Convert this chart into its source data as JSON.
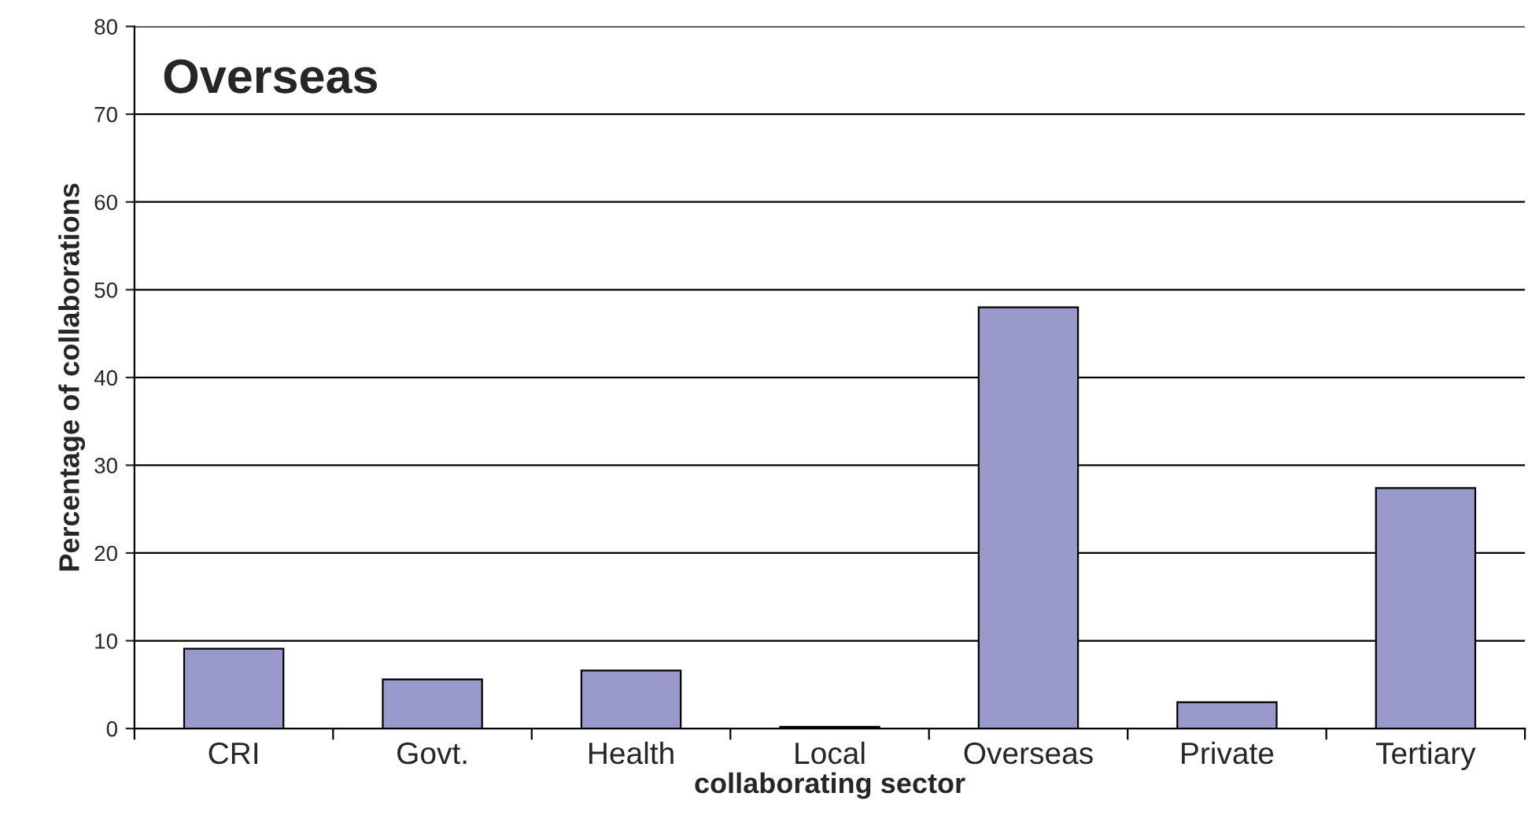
{
  "chart_data": {
    "type": "bar",
    "title": "Overseas",
    "xlabel": "collaborating sector",
    "ylabel": "Percentage of collaborations",
    "categories": [
      "CRI",
      "Govt.",
      "Health",
      "Local",
      "Overseas",
      "Private",
      "Tertiary"
    ],
    "values": [
      9.1,
      5.6,
      6.6,
      0.2,
      48.0,
      3.0,
      27.4
    ],
    "color": "#9999cc",
    "ylim": [
      0,
      80
    ],
    "yticks": [
      0,
      10,
      20,
      30,
      40,
      50,
      60,
      70,
      80
    ],
    "grid": "y"
  }
}
